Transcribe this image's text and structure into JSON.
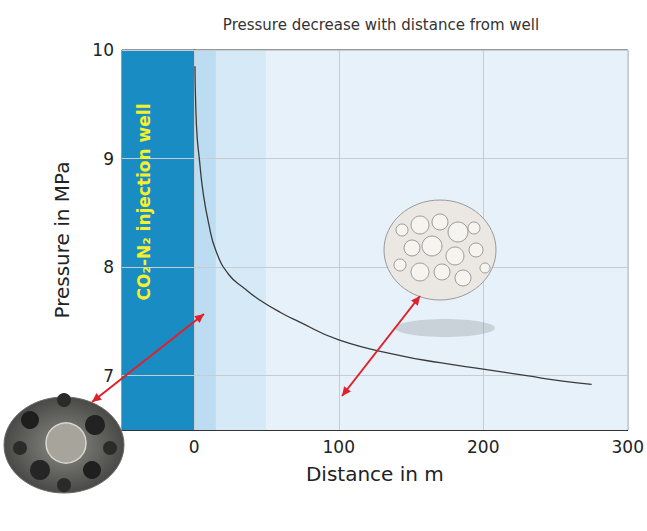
{
  "chart_data": {
    "type": "line",
    "title": "Pressure decrease with distance from well",
    "x_label": "Distance in m",
    "y_label": "Pressure in MPa",
    "x": [
      0.5,
      1,
      2,
      3.5,
      6,
      10,
      15,
      24,
      35,
      45,
      60,
      72,
      100,
      141,
      170,
      200,
      230,
      255,
      275
    ],
    "values": [
      9.85,
      9.5,
      9.2,
      9.0,
      8.7,
      8.4,
      8.15,
      7.93,
      7.8,
      7.7,
      7.58,
      7.5,
      7.33,
      7.19,
      7.12,
      7.06,
      7.0,
      6.95,
      6.92
    ],
    "color": "#3a3a3a",
    "xlim": [
      -50,
      300
    ],
    "xticks": [
      0,
      100,
      200,
      300
    ],
    "ylim": [
      6.5,
      10
    ],
    "yticks": [
      7,
      8,
      9,
      10
    ],
    "grid": true,
    "zones": [
      {
        "x": [
          -50,
          0
        ],
        "color": "#1a8cc4",
        "label": "CO₂-N₂ injection well"
      },
      {
        "x": [
          0,
          15
        ],
        "color": "#bcdcf1"
      },
      {
        "x": [
          15,
          50
        ],
        "color": "#d5e9f7"
      },
      {
        "x": [
          50,
          300
        ],
        "color": "#e6f1fa"
      }
    ]
  }
}
